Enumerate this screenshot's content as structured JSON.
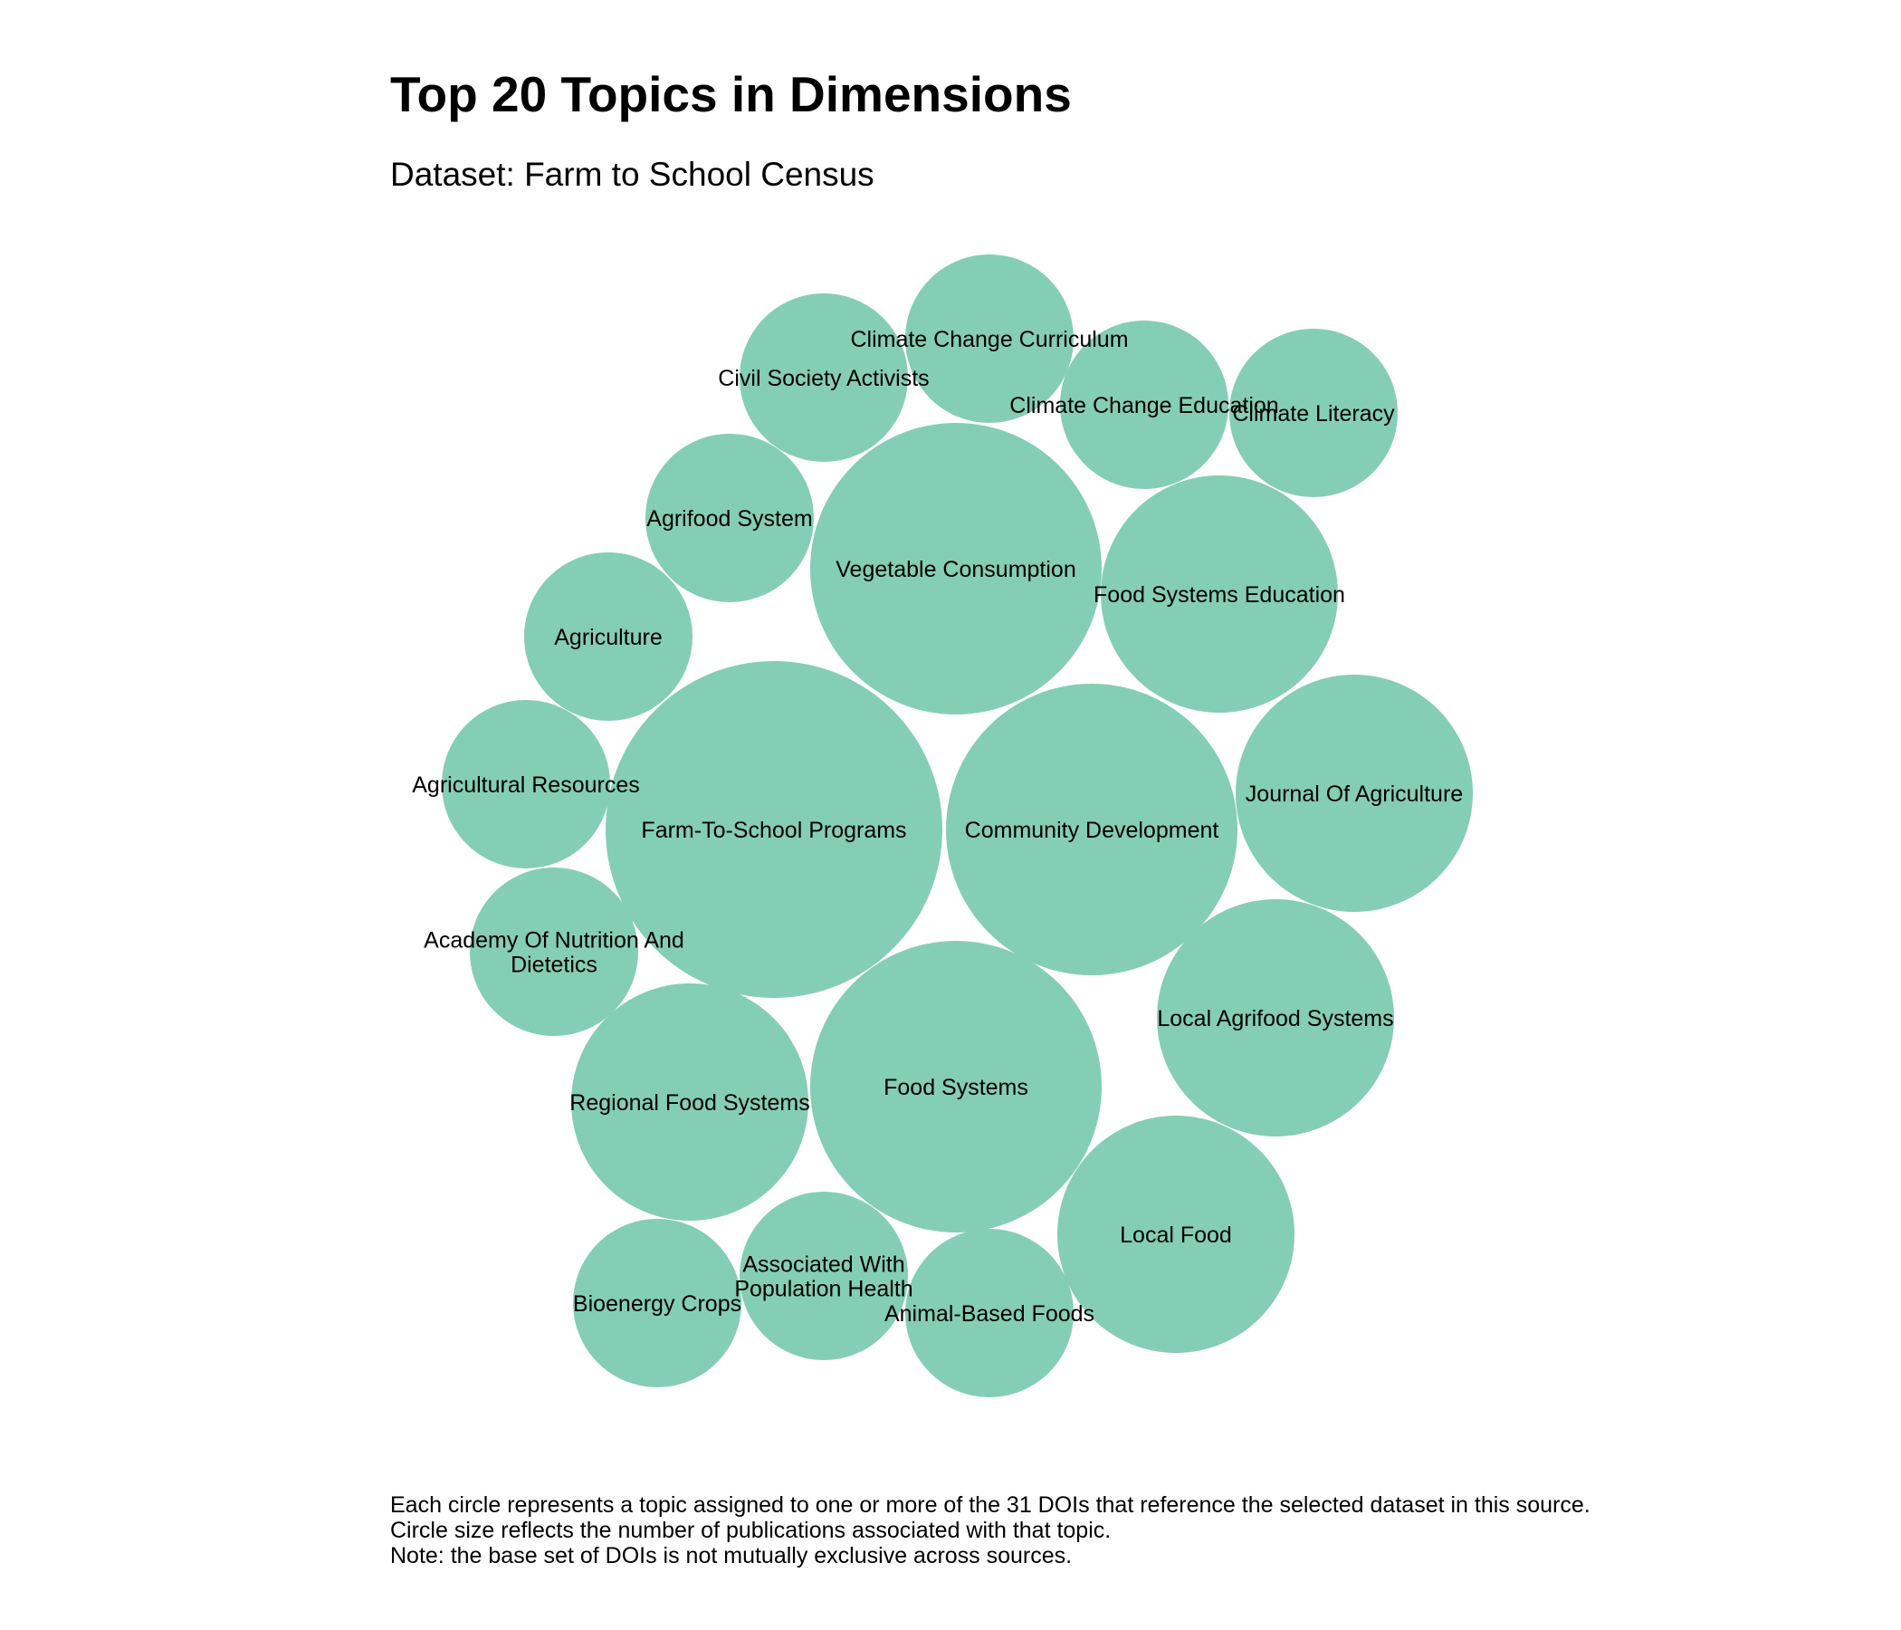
{
  "title": "Top 20 Topics in Dimensions",
  "subtitle": "Dataset: Farm to School Census",
  "colors": {
    "circle_fill": "#84ceb5",
    "background": "#ffffff",
    "text": "#000000"
  },
  "chart_data": {
    "type": "packed-bubble",
    "title": "Top 20 Topics in Dimensions",
    "subtitle": "Dataset: Farm to School Census",
    "topics": [
      {
        "name": "Farm-To-School Programs",
        "lines": [
          "Farm-To-School Programs"
        ],
        "value": 4
      },
      {
        "name": "Community Development",
        "lines": [
          "Community Development"
        ],
        "value": 3
      },
      {
        "name": "Vegetable Consumption",
        "lines": [
          "Vegetable Consumption"
        ],
        "value": 3
      },
      {
        "name": "Food Systems",
        "lines": [
          "Food Systems"
        ],
        "value": 3
      },
      {
        "name": "Journal Of Agriculture",
        "lines": [
          "Journal Of Agriculture"
        ],
        "value": 2
      },
      {
        "name": "Food Systems Education",
        "lines": [
          "Food Systems Education"
        ],
        "value": 2
      },
      {
        "name": "Local Agrifood Systems",
        "lines": [
          "Local Agrifood Systems"
        ],
        "value": 2
      },
      {
        "name": "Regional Food Systems",
        "lines": [
          "Regional Food Systems"
        ],
        "value": 2
      },
      {
        "name": "Local Food",
        "lines": [
          "Local Food"
        ],
        "value": 2
      },
      {
        "name": "Climate Change Curriculum",
        "lines": [
          "Climate Change Curriculum"
        ],
        "value": 1
      },
      {
        "name": "Civil Society Activists",
        "lines": [
          "Civil Society Activists"
        ],
        "value": 1
      },
      {
        "name": "Climate Change Education",
        "lines": [
          "Climate Change Education"
        ],
        "value": 1
      },
      {
        "name": "Climate Literacy",
        "lines": [
          "Climate Literacy"
        ],
        "value": 1
      },
      {
        "name": "Agrifood System",
        "lines": [
          "Agrifood System"
        ],
        "value": 1
      },
      {
        "name": "Agriculture",
        "lines": [
          "Agriculture"
        ],
        "value": 1
      },
      {
        "name": "Agricultural Resources",
        "lines": [
          "Agricultural Resources"
        ],
        "value": 1
      },
      {
        "name": "Academy Of Nutrition And Dietetics",
        "lines": [
          "Academy Of Nutrition And",
          "Dietetics"
        ],
        "value": 1
      },
      {
        "name": "Bioenergy Crops",
        "lines": [
          "Bioenergy Crops"
        ],
        "value": 1
      },
      {
        "name": "Associated With Population Health",
        "lines": [
          "Associated With",
          "Population Health"
        ],
        "value": 1
      },
      {
        "name": "Animal-Based Foods",
        "lines": [
          "Animal-Based Foods"
        ],
        "value": 1
      }
    ]
  },
  "caption": {
    "line1": "Each circle represents a topic assigned to one or more of the 31 DOIs that reference the selected dataset in this source.",
    "line2": "Circle size reflects the number of publications associated with that topic.",
    "line3": "Note: the base set of DOIs is not mutually exclusive across sources."
  }
}
